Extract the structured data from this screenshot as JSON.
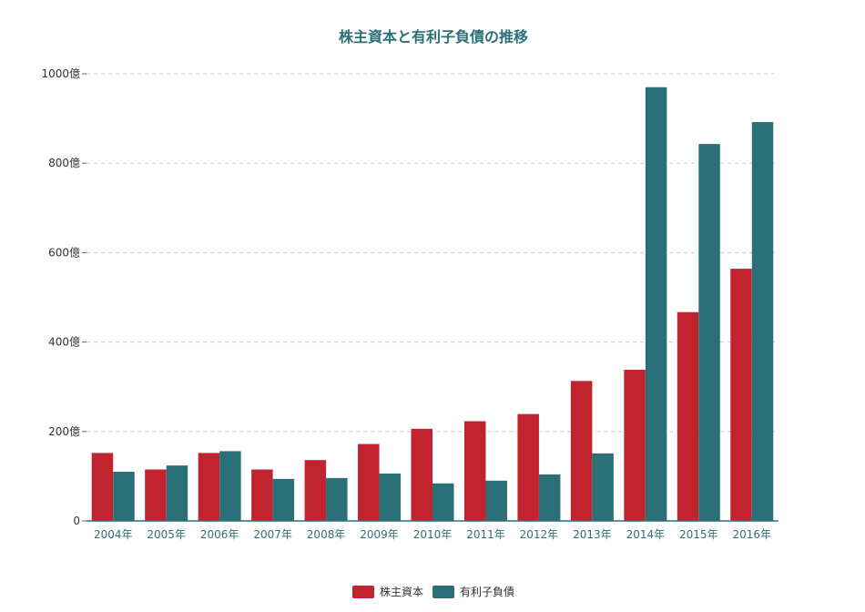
{
  "colors": {
    "title": "#2b7079",
    "xtick": "#2b7079",
    "axis": "#2b7079",
    "grid": "#cccccc"
  },
  "chart_data": {
    "type": "bar",
    "title": "株主資本と有利子負債の推移",
    "xlabel": "",
    "ylabel": "",
    "ylim": [
      0,
      1000
    ],
    "yticks": [
      0,
      200,
      400,
      600,
      800,
      1000
    ],
    "ytick_labels": [
      "0",
      "200億",
      "400億",
      "600億",
      "800億",
      "1000億"
    ],
    "grid": true,
    "legend_position": "bottom",
    "categories": [
      "2004年",
      "2005年",
      "2006年",
      "2007年",
      "2008年",
      "2009年",
      "2010年",
      "2011年",
      "2012年",
      "2013年",
      "2014年",
      "2015年",
      "2016年"
    ],
    "series": [
      {
        "name": "株主資本",
        "color": "#c1242e",
        "values": [
          152,
          115,
          152,
          115,
          136,
          172,
          206,
          223,
          239,
          313,
          338,
          467,
          564
        ]
      },
      {
        "name": "有利子負債",
        "color": "#2b7079",
        "values": [
          110,
          124,
          156,
          94,
          96,
          106,
          84,
          90,
          104,
          151,
          970,
          843,
          892
        ]
      }
    ]
  }
}
